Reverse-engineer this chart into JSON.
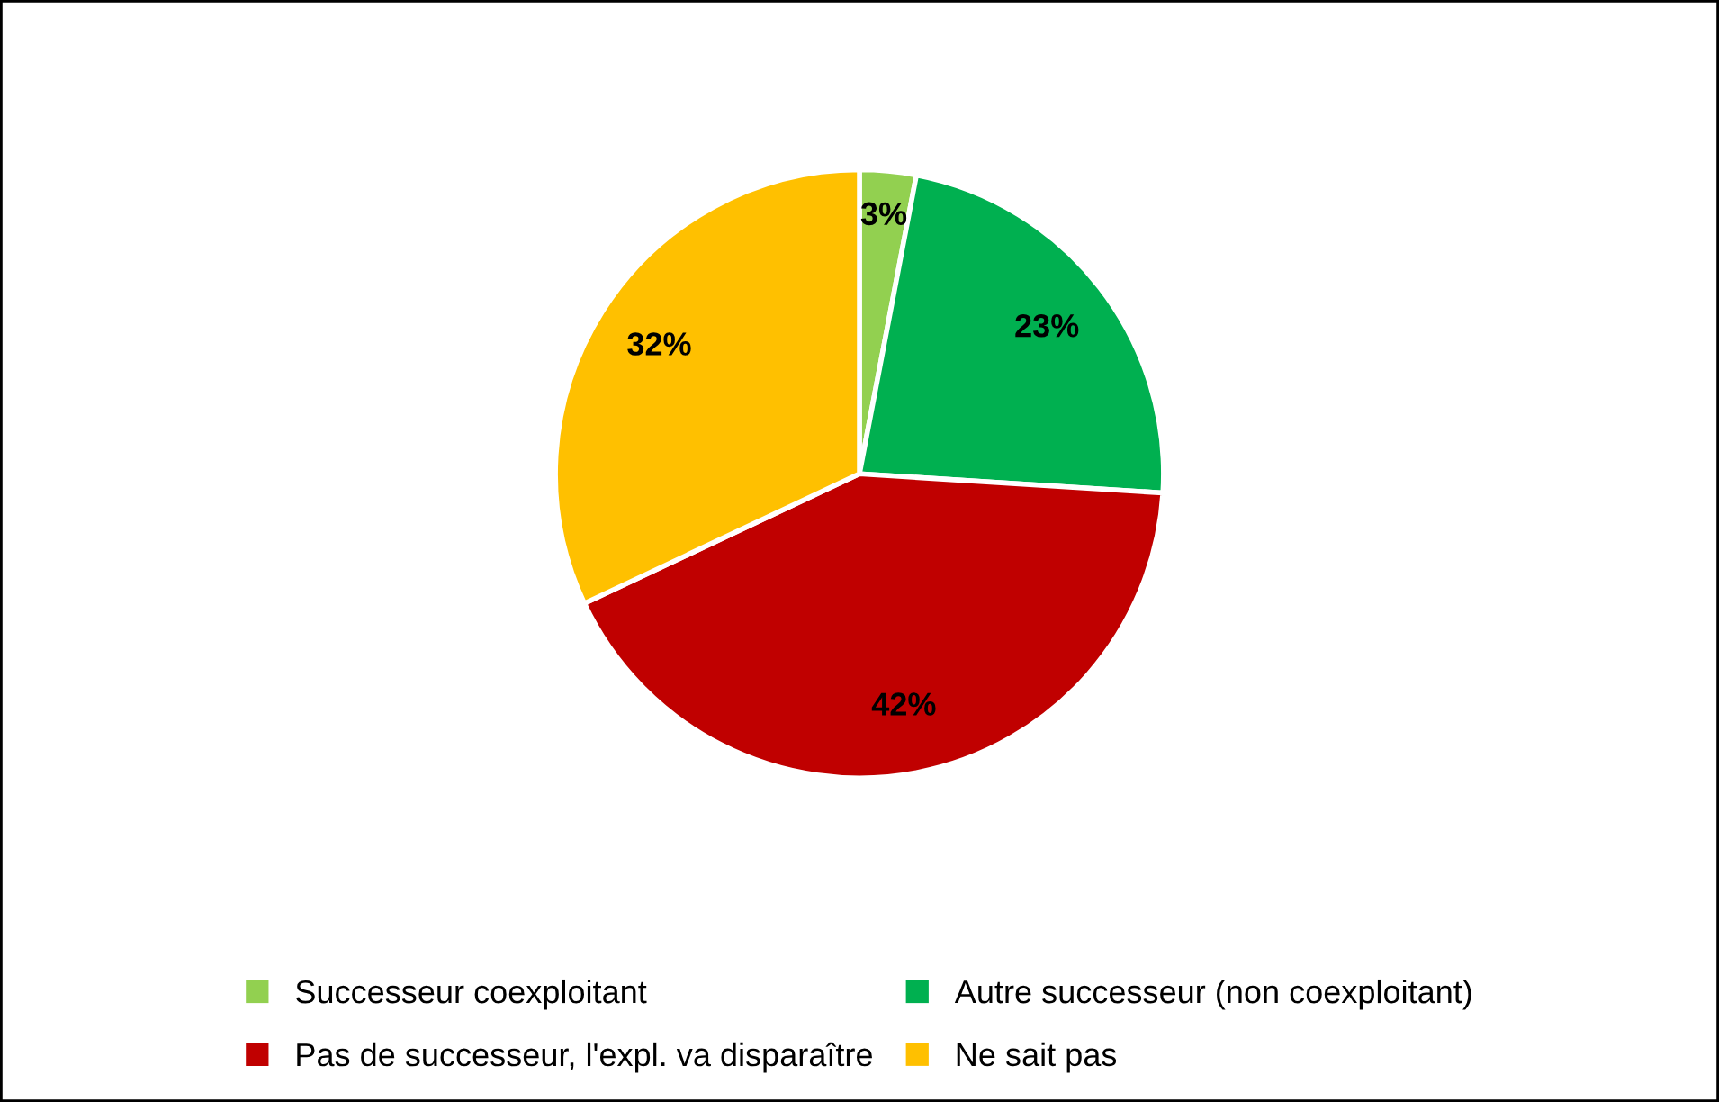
{
  "chart_data": {
    "type": "pie",
    "categories": [
      "Successeur coexploitant",
      "Autre successeur (non coexploitant)",
      "Pas de successeur, l'expl. va disparaître",
      "Ne sait pas"
    ],
    "values": [
      3,
      23,
      42,
      32
    ],
    "colors": [
      "#92d050",
      "#00b050",
      "#c00000",
      "#ffc000"
    ],
    "value_labels": [
      "3%",
      "23%",
      "42%",
      "32%"
    ],
    "legend": "bottom"
  }
}
